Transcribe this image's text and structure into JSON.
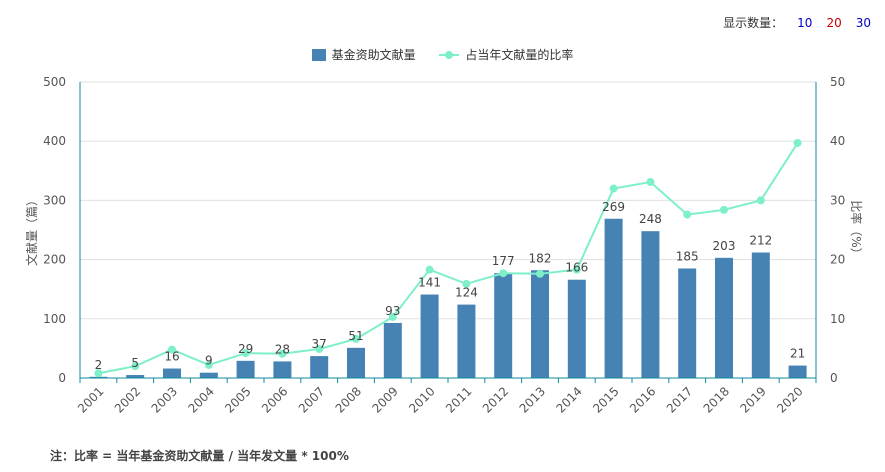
{
  "controls": {
    "label": "显示数量：",
    "options": [
      {
        "label": "10",
        "color": "#0000cc"
      },
      {
        "label": "20",
        "color": "#cc0000"
      },
      {
        "label": "30",
        "color": "#0000cc"
      }
    ]
  },
  "footnote": "注：比率 = 当年基金资助文献量 / 当年发文量 * 100%",
  "colors": {
    "bar": "#4682b4",
    "line": "#7ef0c8",
    "axis": "#0e8a9c",
    "grid": "#e0e0e0"
  },
  "chart_data": {
    "type": "bar",
    "categories": [
      "2001",
      "2002",
      "2003",
      "2004",
      "2005",
      "2006",
      "2007",
      "2008",
      "2009",
      "2010",
      "2011",
      "2012",
      "2013",
      "2014",
      "2015",
      "2016",
      "2017",
      "2018",
      "2019",
      "2020"
    ],
    "series": [
      {
        "name": "基金资助文献量",
        "type": "bar",
        "axis": "left",
        "values": [
          2,
          5,
          16,
          9,
          29,
          28,
          37,
          51,
          93,
          141,
          124,
          177,
          182,
          166,
          269,
          248,
          185,
          203,
          212,
          21
        ]
      },
      {
        "name": "占当年文献量的比率",
        "type": "line",
        "axis": "right",
        "values": [
          0.8,
          2.0,
          4.8,
          2.2,
          4.2,
          4.1,
          4.9,
          6.6,
          10.3,
          18.3,
          15.9,
          17.7,
          17.6,
          18.3,
          32.0,
          33.1,
          27.6,
          28.4,
          30.0,
          39.7
        ]
      }
    ],
    "ylabel": "文献量（篇）",
    "ylabel_right": "比率（%）",
    "ylim": [
      0,
      500
    ],
    "ylim_right": [
      0,
      50
    ],
    "yticks": [
      0,
      100,
      200,
      300,
      400,
      500
    ],
    "yticks_right": [
      0,
      10,
      20,
      30,
      40,
      50
    ],
    "grid": true,
    "legend": "top-center"
  }
}
